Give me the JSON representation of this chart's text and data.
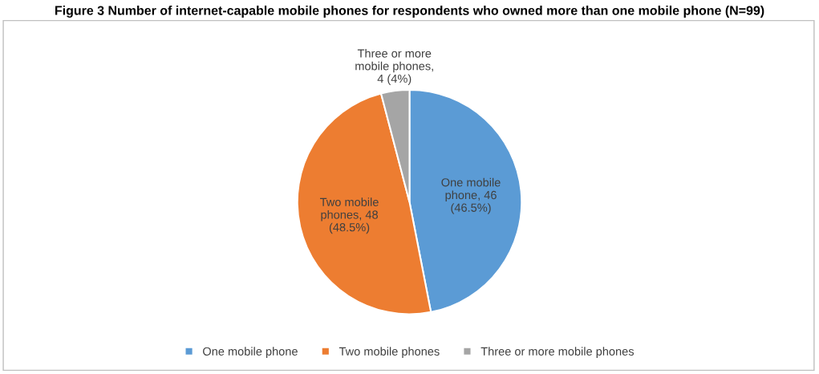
{
  "chart_data": {
    "type": "pie",
    "title": "Figure 3 Number of internet-capable mobile phones for respondents who owned more than one mobile phone (N=99)",
    "categories": [
      "One mobile phone",
      "Two mobile phones",
      "Three or more mobile phones"
    ],
    "values": [
      46,
      48,
      4
    ],
    "colors": [
      "#5b9bd5",
      "#ed7d31",
      "#a5a5a5"
    ],
    "value_labels": [
      "One mobile\nphone, 46\n(46.5%)",
      "Two mobile\nphones, 48\n(48.5%)",
      "Three or more\nmobile phones,\n4 (4%)"
    ],
    "legend": "bottom"
  }
}
